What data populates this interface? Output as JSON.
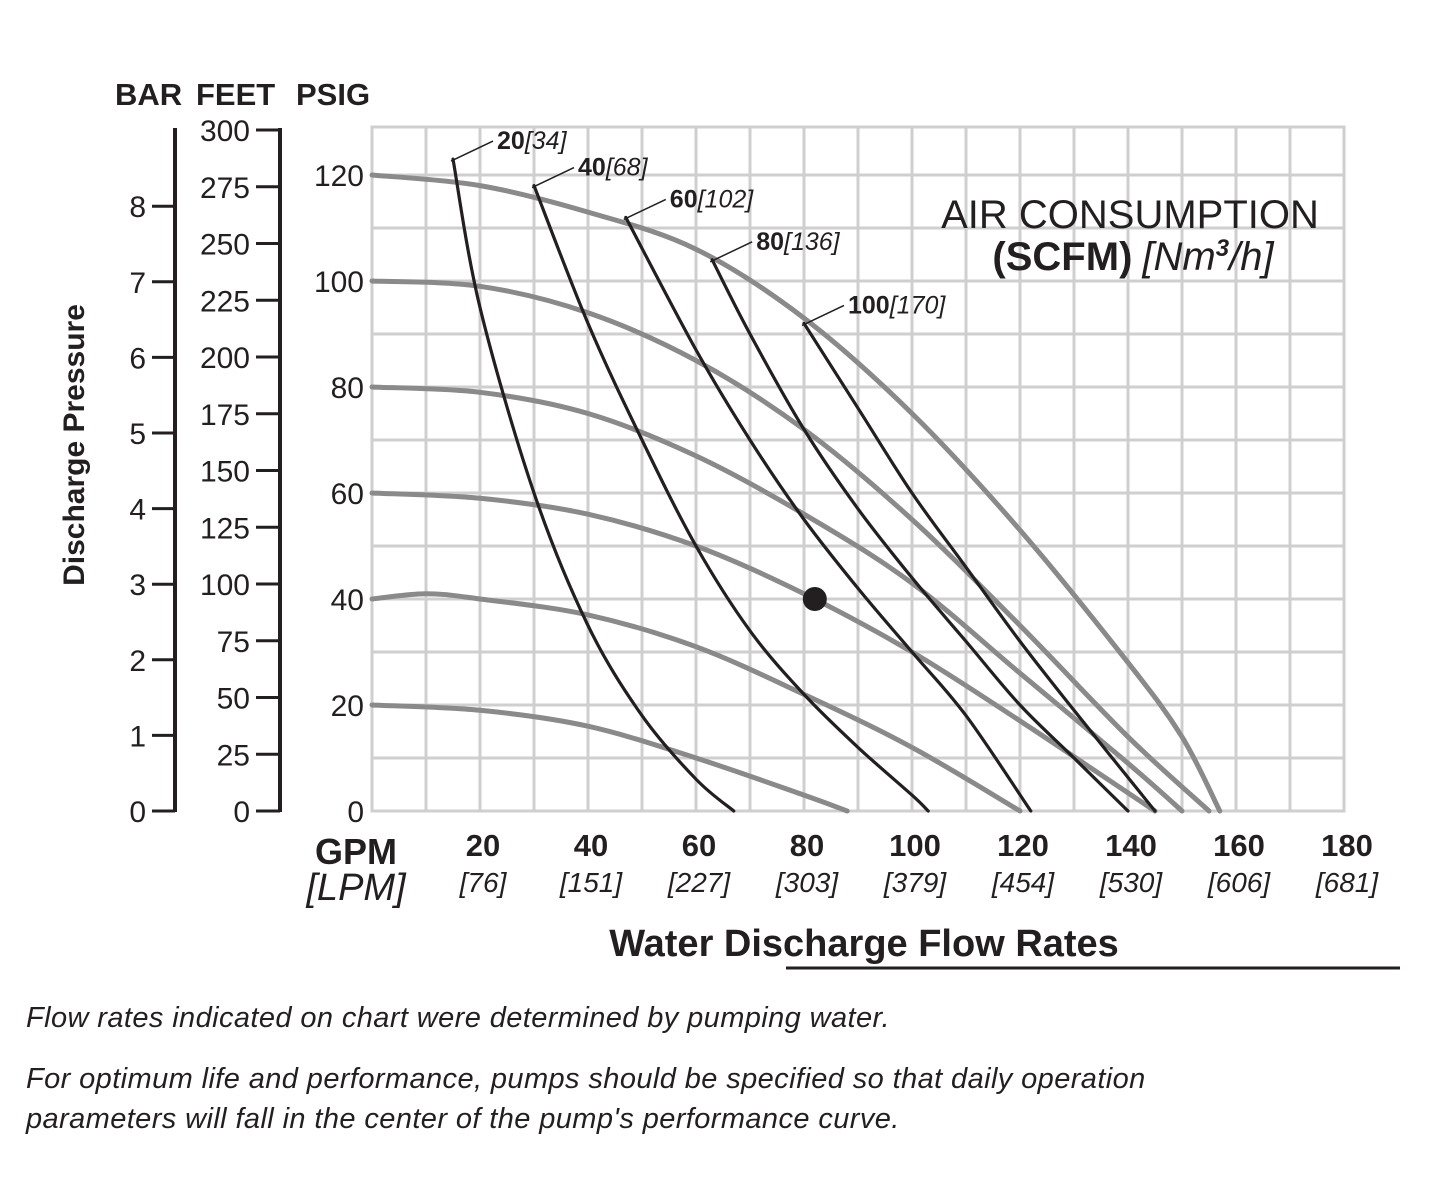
{
  "axis_headers": {
    "bar": "BAR",
    "feet": "FEET",
    "psig": "PSIG"
  },
  "y_label": "Discharge Pressure",
  "bar_ticks": [
    "0",
    "1",
    "2",
    "3",
    "4",
    "5",
    "6",
    "7",
    "8"
  ],
  "feet_ticks": [
    "0",
    "25",
    "50",
    "75",
    "100",
    "125",
    "150",
    "175",
    "200",
    "225",
    "250",
    "275",
    "300"
  ],
  "psig_ticks": [
    "0",
    "20",
    "40",
    "60",
    "80",
    "100",
    "120"
  ],
  "x_unit_primary": "GPM",
  "x_unit_secondary": "[LPM]",
  "x_ticks": [
    {
      "gpm": "20",
      "lpm": "[76]"
    },
    {
      "gpm": "40",
      "lpm": "[151]"
    },
    {
      "gpm": "60",
      "lpm": "[227]"
    },
    {
      "gpm": "80",
      "lpm": "[303]"
    },
    {
      "gpm": "100",
      "lpm": "[379]"
    },
    {
      "gpm": "120",
      "lpm": "[454]"
    },
    {
      "gpm": "140",
      "lpm": "[530]"
    },
    {
      "gpm": "160",
      "lpm": "[606]"
    },
    {
      "gpm": "180",
      "lpm": "[681]"
    }
  ],
  "x_title": "Water Discharge Flow Rates",
  "air_consumption": {
    "line1": "AIR CONSUMPTION",
    "line2_bold": "(SCFM)",
    "line2_italic": "[Nm",
    "line2_sup": "3",
    "line2_end": "/h]"
  },
  "notes": [
    "Flow rates indicated on chart were determined by pumping water.",
    "For optimum life and performance, pumps should be specified so that daily operation",
    "parameters will fall in the center of the pump's performance curve."
  ],
  "colors": {
    "grid": "#cfcfcf",
    "pressure_curve": "#8a8a8a",
    "air_curve": "#231f20",
    "text": "#231f20"
  },
  "chart_data": {
    "type": "line",
    "x_unit": "GPM",
    "y_unit": "PSIG",
    "xlim": [
      0,
      180
    ],
    "ylim": [
      0,
      130
    ],
    "grid": true,
    "pressure_curves": [
      {
        "x": [
          0,
          20,
          40,
          60,
          80,
          100,
          120,
          140,
          150,
          157
        ],
        "y": [
          120,
          118,
          113,
          106,
          93,
          75,
          53,
          28,
          14,
          0
        ]
      },
      {
        "x": [
          0,
          20,
          40,
          60,
          80,
          100,
          120,
          140,
          155
        ],
        "y": [
          100,
          99,
          94,
          85,
          72,
          55,
          35,
          14,
          0
        ]
      },
      {
        "x": [
          0,
          20,
          40,
          60,
          80,
          100,
          120,
          140,
          150
        ],
        "y": [
          80,
          79,
          75,
          67,
          56,
          43,
          26,
          9,
          0
        ]
      },
      {
        "x": [
          0,
          20,
          40,
          60,
          80,
          100,
          120,
          145
        ],
        "y": [
          60,
          59,
          56,
          50,
          41,
          30,
          17,
          0
        ]
      },
      {
        "x": [
          0,
          10,
          20,
          40,
          60,
          80,
          100,
          120
        ],
        "y": [
          40,
          41,
          40,
          37,
          31,
          22,
          12,
          0
        ]
      },
      {
        "x": [
          0,
          20,
          40,
          60,
          80,
          88
        ],
        "y": [
          20,
          19,
          16,
          10,
          3,
          0
        ]
      }
    ],
    "air_curves": [
      {
        "name": "20[34]",
        "x": [
          15,
          20,
          30,
          40,
          50,
          60,
          67
        ],
        "y": [
          123,
          95,
          60,
          35,
          18,
          6,
          0
        ]
      },
      {
        "name": "40[68]",
        "x": [
          30,
          40,
          50,
          60,
          70,
          80,
          90,
          100,
          103
        ],
        "y": [
          118,
          92,
          70,
          50,
          34,
          22,
          12,
          3,
          0
        ]
      },
      {
        "name": "60[102]",
        "x": [
          47,
          60,
          70,
          80,
          90,
          100,
          110,
          122
        ],
        "y": [
          112,
          87,
          70,
          55,
          42,
          30,
          18,
          0
        ]
      },
      {
        "name": "80[136]",
        "x": [
          63,
          70,
          80,
          90,
          100,
          110,
          120,
          130,
          140
        ],
        "y": [
          104,
          90,
          72,
          57,
          44,
          32,
          20,
          10,
          0
        ]
      },
      {
        "name": "100[170]",
        "x": [
          80,
          90,
          100,
          110,
          120,
          130,
          145
        ],
        "y": [
          92,
          76,
          60,
          46,
          32,
          19,
          0
        ]
      }
    ],
    "operating_point": {
      "x": 82,
      "y": 40
    }
  }
}
